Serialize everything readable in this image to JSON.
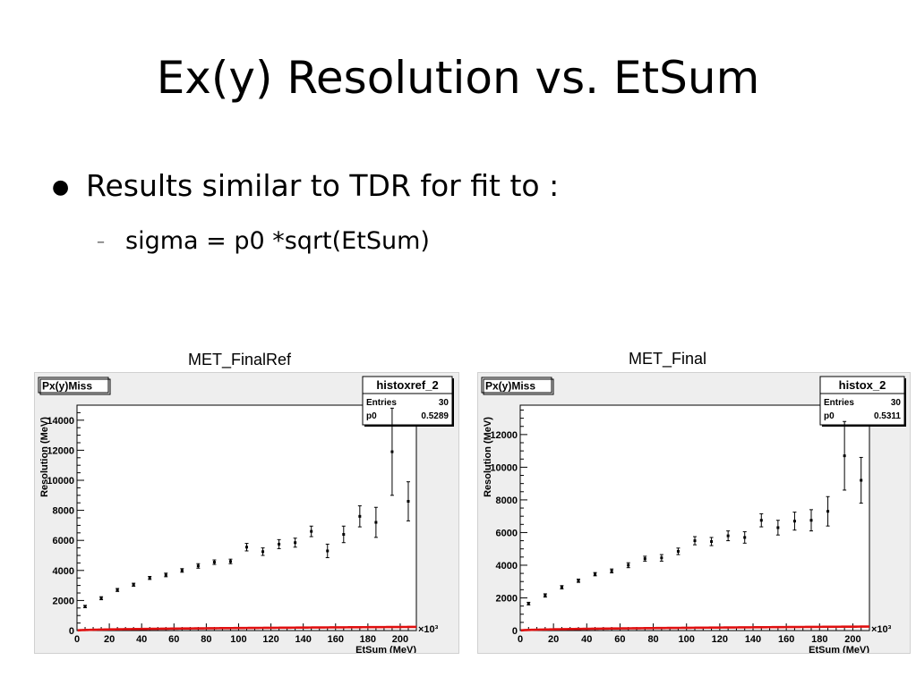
{
  "slide": {
    "title": "Ex(y) Resolution vs. EtSum",
    "bullet": "Results similar to TDR for fit to :",
    "sub_bullet": "sigma = p0 *sqrt(EtSum)"
  },
  "colors": {
    "fit_line": "#e01010",
    "panel_bg": "#eeeeee",
    "frame_bg": "#ffffff"
  },
  "chart_data": [
    {
      "type": "scatter",
      "caption": "MET_FinalRef",
      "hist_title": "Px(y)Miss",
      "stats": {
        "name": "histoxref_2",
        "entries_label": "Entries",
        "entries": "30",
        "p0_label": "p0",
        "p0": "0.5289"
      },
      "xlabel": "EtSum (MeV)",
      "ylabel": "Resolution (MeV)",
      "x_multiplier": "×10³",
      "xlim": [
        0,
        210
      ],
      "ylim": [
        0,
        15000
      ],
      "xticks": [
        0,
        20,
        40,
        60,
        80,
        100,
        120,
        140,
        160,
        180,
        200
      ],
      "yticks": [
        0,
        2000,
        4000,
        6000,
        8000,
        10000,
        12000,
        14000
      ],
      "fit": {
        "formula": "p0*sqrt(EtSum)",
        "p0": 0.5289
      },
      "points": [
        {
          "x": 5,
          "y": 1600,
          "err": 80
        },
        {
          "x": 15,
          "y": 2150,
          "err": 100
        },
        {
          "x": 25,
          "y": 2700,
          "err": 100
        },
        {
          "x": 35,
          "y": 3050,
          "err": 100
        },
        {
          "x": 45,
          "y": 3500,
          "err": 100
        },
        {
          "x": 55,
          "y": 3700,
          "err": 120
        },
        {
          "x": 65,
          "y": 4000,
          "err": 120
        },
        {
          "x": 75,
          "y": 4300,
          "err": 150
        },
        {
          "x": 85,
          "y": 4550,
          "err": 150
        },
        {
          "x": 95,
          "y": 4600,
          "err": 150
        },
        {
          "x": 105,
          "y": 5550,
          "err": 250
        },
        {
          "x": 115,
          "y": 5250,
          "err": 250
        },
        {
          "x": 125,
          "y": 5750,
          "err": 300
        },
        {
          "x": 135,
          "y": 5850,
          "err": 300
        },
        {
          "x": 145,
          "y": 6600,
          "err": 350
        },
        {
          "x": 155,
          "y": 5300,
          "err": 450
        },
        {
          "x": 165,
          "y": 6400,
          "err": 550
        },
        {
          "x": 175,
          "y": 7600,
          "err": 700
        },
        {
          "x": 185,
          "y": 7200,
          "err": 1000
        },
        {
          "x": 195,
          "y": 11900,
          "err": 2900
        },
        {
          "x": 205,
          "y": 8600,
          "err": 1300
        }
      ]
    },
    {
      "type": "scatter",
      "caption": "MET_Final",
      "hist_title": "Px(y)Miss",
      "stats": {
        "name": "histox_2",
        "entries_label": "Entries",
        "entries": "30",
        "p0_label": "p0",
        "p0": "0.5311"
      },
      "xlabel": "EtSum (MeV)",
      "ylabel": "Resolution (MeV)",
      "x_multiplier": "×10³",
      "xlim": [
        0,
        210
      ],
      "ylim": [
        0,
        13800
      ],
      "xticks": [
        0,
        20,
        40,
        60,
        80,
        100,
        120,
        140,
        160,
        180,
        200
      ],
      "yticks": [
        0,
        2000,
        4000,
        6000,
        8000,
        10000,
        12000
      ],
      "fit": {
        "formula": "p0*sqrt(EtSum)",
        "p0": 0.5311
      },
      "points": [
        {
          "x": 5,
          "y": 1650,
          "err": 80
        },
        {
          "x": 15,
          "y": 2150,
          "err": 100
        },
        {
          "x": 25,
          "y": 2650,
          "err": 100
        },
        {
          "x": 35,
          "y": 3050,
          "err": 100
        },
        {
          "x": 45,
          "y": 3450,
          "err": 100
        },
        {
          "x": 55,
          "y": 3650,
          "err": 120
        },
        {
          "x": 65,
          "y": 4000,
          "err": 150
        },
        {
          "x": 75,
          "y": 4400,
          "err": 150
        },
        {
          "x": 85,
          "y": 4450,
          "err": 200
        },
        {
          "x": 95,
          "y": 4850,
          "err": 200
        },
        {
          "x": 105,
          "y": 5500,
          "err": 250
        },
        {
          "x": 115,
          "y": 5450,
          "err": 250
        },
        {
          "x": 125,
          "y": 5800,
          "err": 300
        },
        {
          "x": 135,
          "y": 5700,
          "err": 350
        },
        {
          "x": 145,
          "y": 6750,
          "err": 400
        },
        {
          "x": 155,
          "y": 6300,
          "err": 450
        },
        {
          "x": 165,
          "y": 6700,
          "err": 550
        },
        {
          "x": 175,
          "y": 6750,
          "err": 650
        },
        {
          "x": 185,
          "y": 7300,
          "err": 900
        },
        {
          "x": 195,
          "y": 10700,
          "err": 2100
        },
        {
          "x": 205,
          "y": 9200,
          "err": 1400
        }
      ]
    }
  ]
}
